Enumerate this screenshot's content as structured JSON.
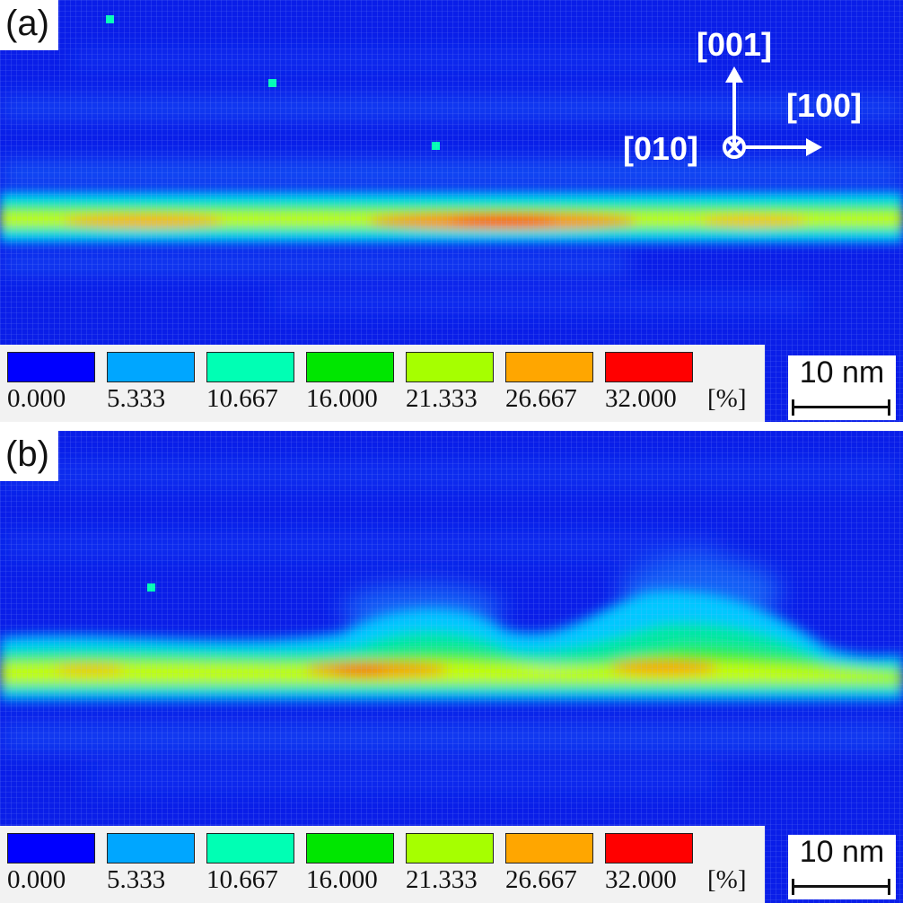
{
  "panels": [
    {
      "tag": "(a)",
      "scale_bar": "10 nm",
      "legend": {
        "labels": [
          "0.000",
          "5.333",
          "10.667",
          "16.000",
          "21.333",
          "26.667",
          "32.000"
        ],
        "unit": "[%]",
        "colors": [
          "#0000ff",
          "#00a6ff",
          "#00ffb4",
          "#00e600",
          "#a6ff00",
          "#ffa600",
          "#ff0000"
        ]
      },
      "axes": {
        "up": "[001]",
        "right": "[100]",
        "into_page": "[010]"
      }
    },
    {
      "tag": "(b)",
      "scale_bar": "10 nm",
      "legend": {
        "labels": [
          "0.000",
          "5.333",
          "10.667",
          "16.000",
          "21.333",
          "26.667",
          "32.000"
        ],
        "unit": "[%]",
        "colors": [
          "#0000ff",
          "#00a6ff",
          "#00ffb4",
          "#00e600",
          "#a6ff00",
          "#ffa600",
          "#ff0000"
        ]
      }
    }
  ]
}
